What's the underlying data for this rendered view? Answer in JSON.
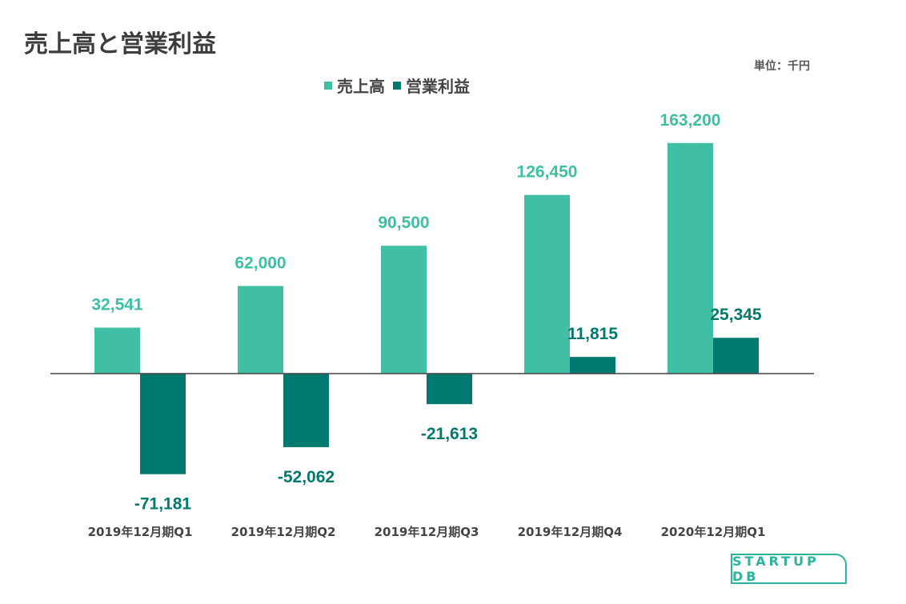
{
  "title": "売上高と営業利益",
  "unit_label": "単位：千円",
  "logo_text": "STARTUP DB",
  "colors": {
    "sales": "#40bfa5",
    "profit": "#007a70",
    "sales_label": "#3dbfa3",
    "profit_label": "#00796e"
  },
  "chart_data": {
    "type": "bar",
    "categories": [
      "2019年12月期Q1",
      "2019年12月期Q2",
      "2019年12月期Q3",
      "2019年12月期Q4",
      "2020年12月期Q1"
    ],
    "series": [
      {
        "name": "売上高",
        "values": [
          32541,
          62000,
          90500,
          126450,
          163200
        ],
        "labels": [
          "32,541",
          "62,000",
          "90,500",
          "126,450",
          "163,200"
        ]
      },
      {
        "name": "営業利益",
        "values": [
          -71181,
          -52062,
          -21613,
          11815,
          25345
        ],
        "labels": [
          "-71,181",
          "-52,062",
          "-21,613",
          "11,815",
          "25,345"
        ]
      }
    ],
    "legend": "top-center",
    "grid": false
  }
}
